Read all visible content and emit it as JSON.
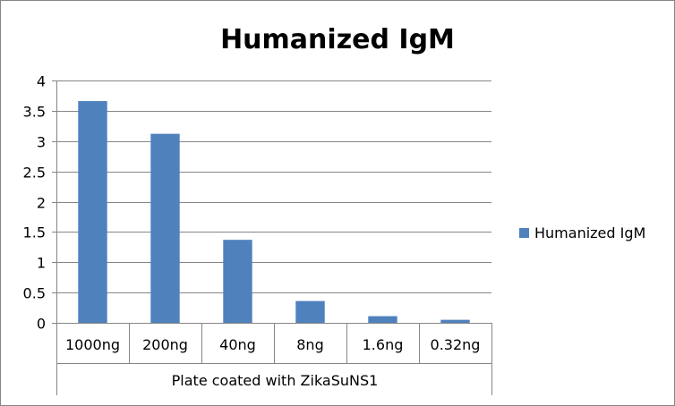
{
  "chart_data": {
    "type": "bar",
    "title": "Humanized IgM",
    "categories": [
      "1000ng",
      "200ng",
      "40ng",
      "8ng",
      "1.6ng",
      "0.32ng"
    ],
    "series": [
      {
        "name": "Humanized IgM",
        "values": [
          3.66,
          3.12,
          1.37,
          0.36,
          0.11,
          0.05
        ]
      }
    ],
    "xlabel": "Plate coated with ZikaSuNS1",
    "ylabel": "",
    "ylim": [
      0,
      4
    ],
    "yticks": [
      "0",
      "0.5",
      "1",
      "1.5",
      "2",
      "2.5",
      "3",
      "3.5",
      "4"
    ],
    "grid": true,
    "legend_position": "right",
    "colors": {
      "bar": "#4f81bd",
      "grid": "#868686",
      "axis": "#868686"
    }
  }
}
